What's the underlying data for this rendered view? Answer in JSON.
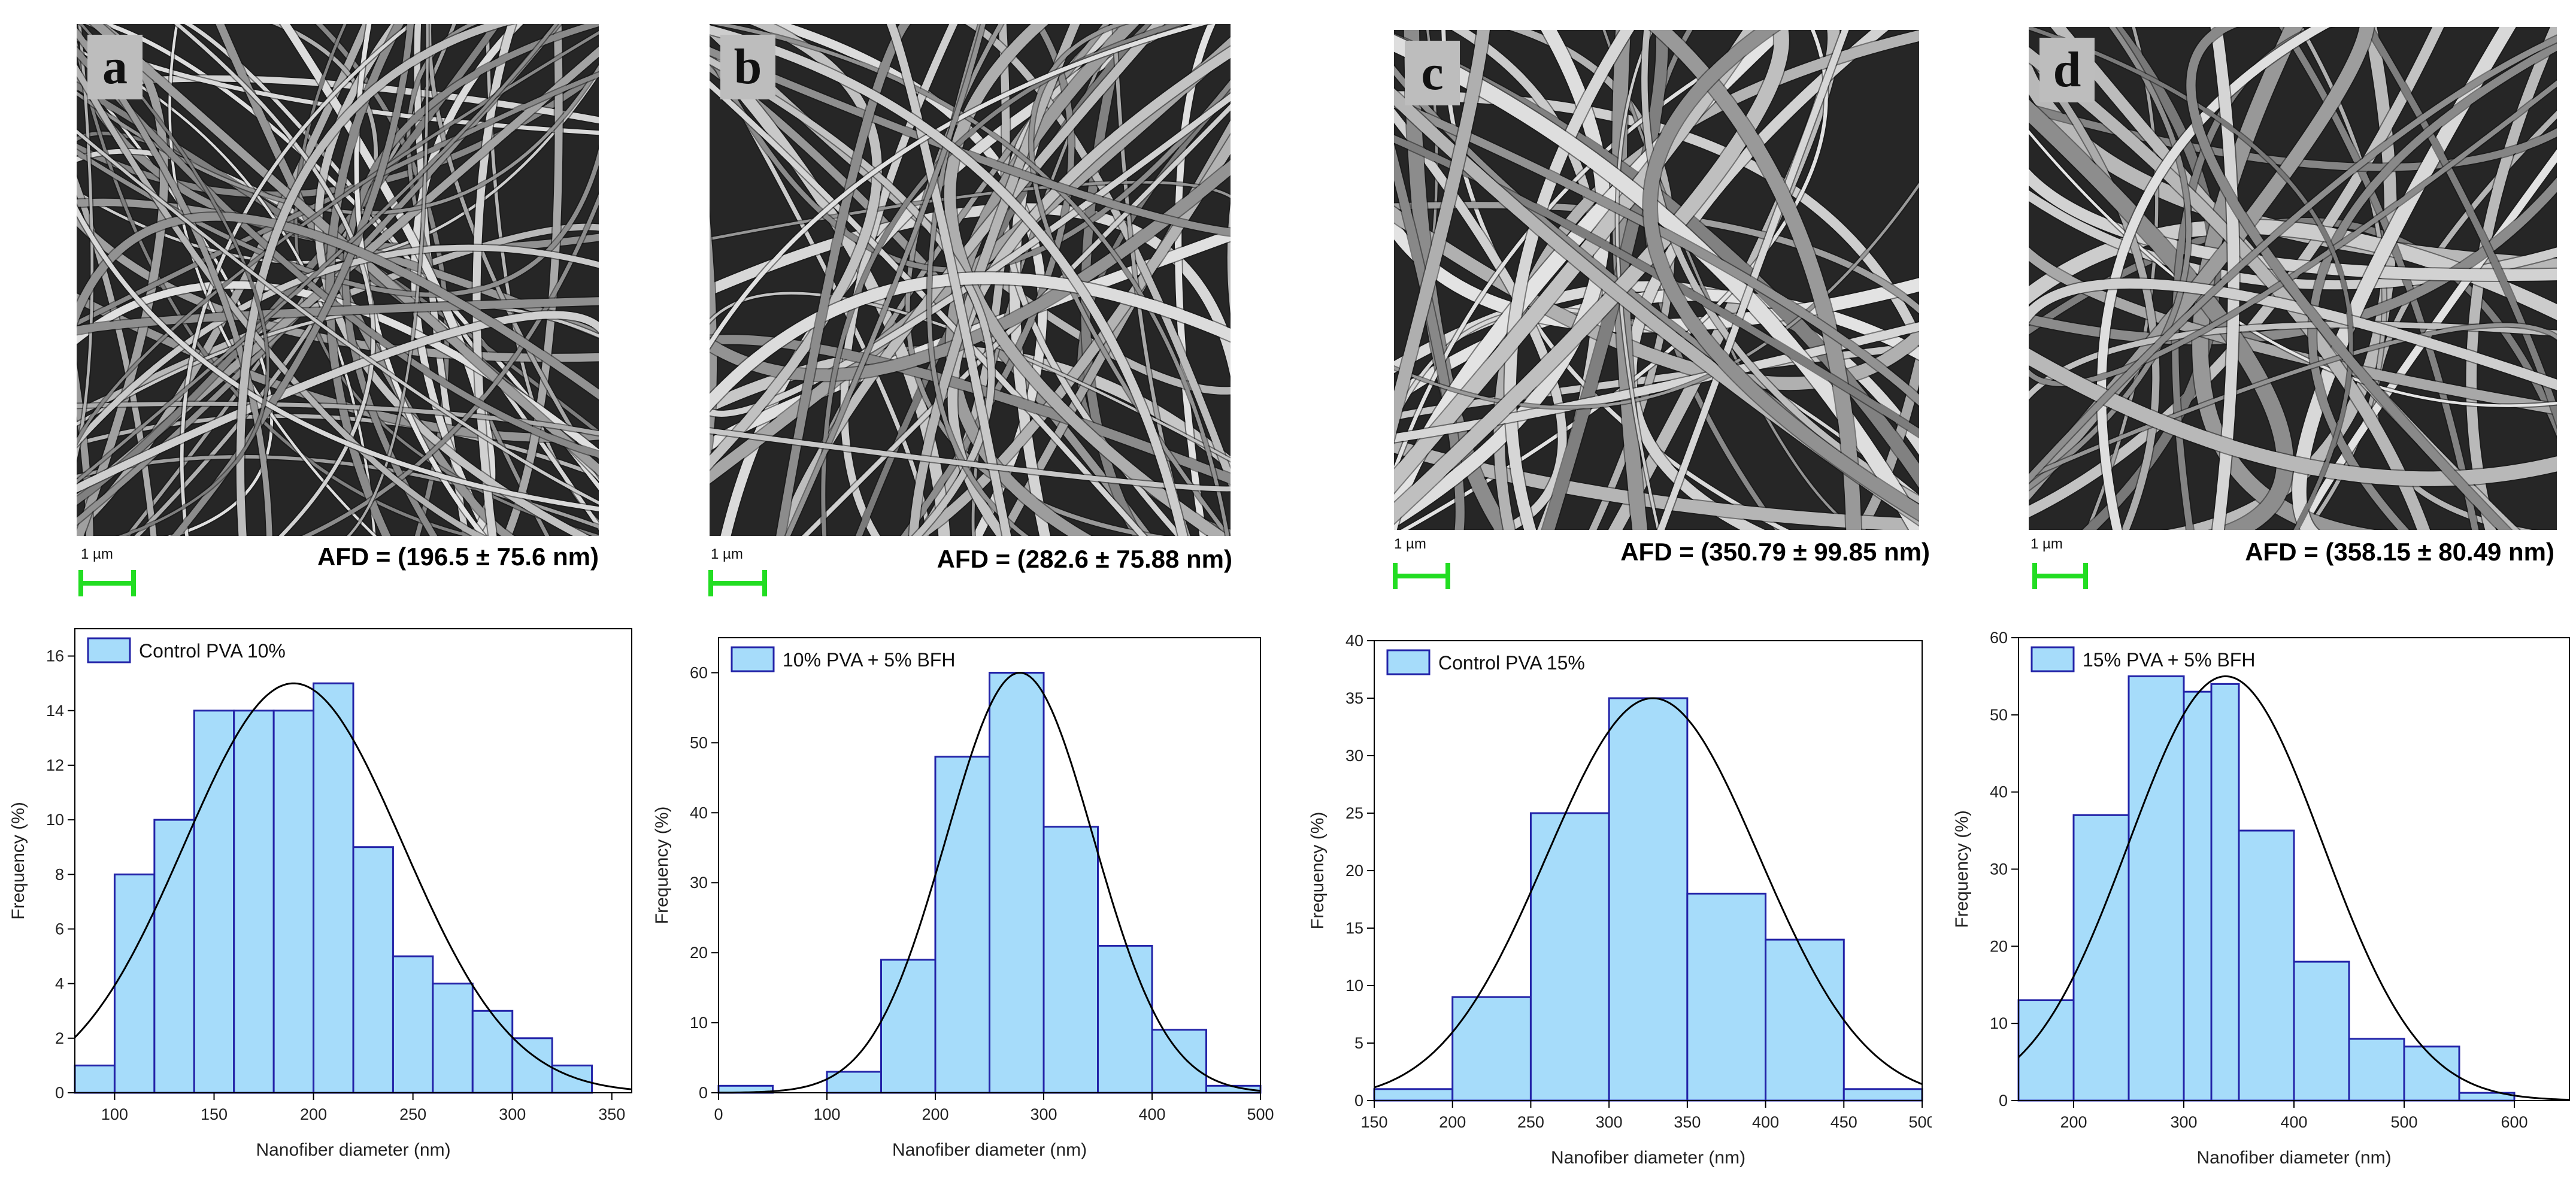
{
  "figures": [
    {
      "letter": "a",
      "scale": "1 µm",
      "afd": "AFD = (196.5 ± 75.6 nm)"
    },
    {
      "letter": "b",
      "scale": "1 µm",
      "afd": "AFD = (282.6 ± 75.88 nm)"
    },
    {
      "letter": "c",
      "scale": "1 µm",
      "afd": "AFD = (350.79 ± 99.85 nm)"
    },
    {
      "letter": "d",
      "scale": "1 µm",
      "afd": "AFD = (358.15 ± 80.49 nm)"
    }
  ],
  "colors": {
    "bar_fill": "#a6dcfa",
    "bar_stroke": "#2323a8",
    "curve": "#000000",
    "scale_bar": "#22dd22"
  },
  "chart_data": [
    {
      "type": "bar",
      "legend": "Control PVA 10%",
      "legend_position": "top-left",
      "xlabel": "Nanofiber diameter (nm)",
      "ylabel": "Frequency (%)",
      "xlim": [
        80,
        360
      ],
      "ylim": [
        0,
        17
      ],
      "xticks": [
        100,
        150,
        200,
        250,
        300,
        350
      ],
      "yticks": [
        0,
        2,
        4,
        6,
        8,
        10,
        12,
        14,
        16
      ],
      "bins": [
        [
          80,
          100
        ],
        [
          100,
          120
        ],
        [
          120,
          140
        ],
        [
          140,
          160
        ],
        [
          160,
          180
        ],
        [
          180,
          200
        ],
        [
          200,
          220
        ],
        [
          220,
          240
        ],
        [
          240,
          260
        ],
        [
          260,
          280
        ],
        [
          280,
          300
        ],
        [
          300,
          320
        ],
        [
          320,
          340
        ],
        [
          340,
          360
        ]
      ],
      "values": [
        1,
        8,
        10,
        14,
        14,
        14,
        15,
        9,
        5,
        4,
        3,
        2,
        1,
        0
      ],
      "fit": {
        "type": "gaussian",
        "peak": 15,
        "mean": 190,
        "sd": 55
      }
    },
    {
      "type": "bar",
      "legend": "10% PVA + 5% BFH",
      "legend_position": "top-left",
      "xlabel": "Nanofiber diameter (nm)",
      "ylabel": "Frequency (%)",
      "xlim": [
        0,
        500
      ],
      "ylim": [
        0,
        65
      ],
      "xticks": [
        0,
        100,
        200,
        300,
        400,
        500
      ],
      "yticks": [
        0,
        10,
        20,
        30,
        40,
        50,
        60
      ],
      "bins": [
        [
          0,
          50
        ],
        [
          50,
          100
        ],
        [
          100,
          150
        ],
        [
          150,
          200
        ],
        [
          200,
          250
        ],
        [
          250,
          300
        ],
        [
          300,
          350
        ],
        [
          350,
          400
        ],
        [
          400,
          450
        ],
        [
          450,
          500
        ]
      ],
      "values": [
        1,
        0,
        3,
        19,
        48,
        60,
        38,
        21,
        9,
        1
      ],
      "fit": {
        "type": "gaussian",
        "peak": 60,
        "mean": 278,
        "sd": 68
      }
    },
    {
      "type": "bar",
      "legend": "Control PVA 15%",
      "legend_position": "top-left",
      "xlabel": "Nanofiber diameter (nm)",
      "ylabel": "Frequency (%)",
      "xlim": [
        150,
        500
      ],
      "ylim": [
        0,
        40
      ],
      "xticks": [
        150,
        200,
        250,
        300,
        350,
        400,
        450,
        500
      ],
      "yticks": [
        0,
        5,
        10,
        15,
        20,
        25,
        30,
        35,
        40
      ],
      "bins": [
        [
          150,
          200
        ],
        [
          200,
          250
        ],
        [
          250,
          300
        ],
        [
          300,
          350
        ],
        [
          350,
          400
        ],
        [
          400,
          450
        ],
        [
          450,
          500
        ]
      ],
      "values": [
        1,
        9,
        25,
        35,
        18,
        14,
        1
      ],
      "fit": {
        "type": "gaussian",
        "peak": 35,
        "mean": 328,
        "sd": 68
      }
    },
    {
      "type": "bar",
      "legend": "15% PVA + 5% BFH",
      "legend_position": "top-left",
      "xlabel": "Nanofiber diameter (nm)",
      "ylabel": "Frequency (%)",
      "xlim": [
        150,
        650
      ],
      "ylim": [
        0,
        60
      ],
      "xticks": [
        200,
        300,
        400,
        500,
        600
      ],
      "yticks": [
        0,
        10,
        20,
        30,
        40,
        50,
        60
      ],
      "bins": [
        [
          150,
          200
        ],
        [
          200,
          250
        ],
        [
          250,
          300
        ],
        [
          300,
          325
        ],
        [
          325,
          350
        ],
        [
          350,
          400
        ],
        [
          400,
          450
        ],
        [
          450,
          500
        ],
        [
          500,
          550
        ],
        [
          550,
          600
        ],
        [
          600,
          650
        ]
      ],
      "values": [
        13,
        37,
        55,
        53,
        54,
        35,
        18,
        8,
        7,
        1,
        0
      ],
      "fit": {
        "type": "gaussian",
        "peak": 55,
        "mean": 338,
        "sd": 88
      }
    }
  ]
}
